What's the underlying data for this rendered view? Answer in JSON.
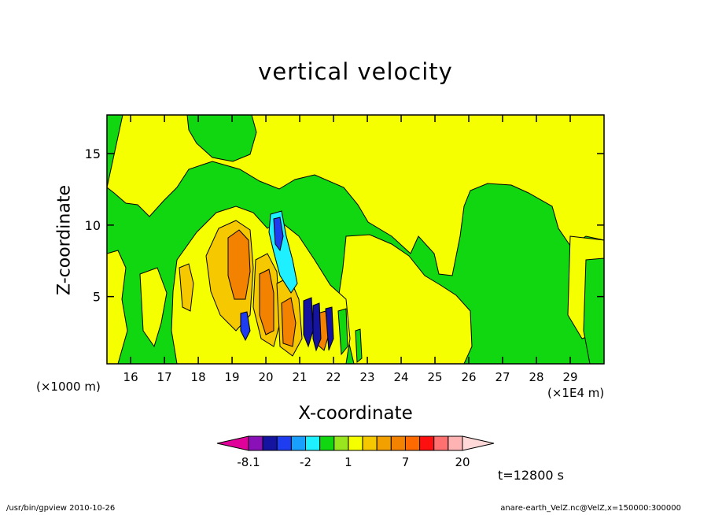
{
  "chart_data": {
    "type": "heatmap",
    "title": "vertical velocity",
    "xlabel": "X-coordinate",
    "ylabel": "Z-coordinate",
    "x_unit_left": "(×1000 m)",
    "x_unit_right": "(×1E4 m)",
    "x_ticks": [
      "16",
      "17",
      "18",
      "19",
      "20",
      "21",
      "22",
      "23",
      "24",
      "25",
      "26",
      "27",
      "28",
      "29"
    ],
    "y_ticks": [
      "5",
      "10",
      "15"
    ],
    "xlim": [
      15.3,
      30.0
    ],
    "ylim": [
      0.3,
      17.7
    ],
    "colorbar": {
      "colors": [
        "#e0009a",
        "#8a10b8",
        "#1414a0",
        "#1f3df0",
        "#19a0ff",
        "#1ff0ff",
        "#11d711",
        "#9ae61e",
        "#f5ff00",
        "#f5c800",
        "#f2a000",
        "#f28200",
        "#ff6a00",
        "#ff1010",
        "#ff7070",
        "#ffb4b4",
        "#ffd8d8"
      ],
      "labels": [
        {
          "text": "-8.1",
          "index": 1
        },
        {
          "text": "-2",
          "index": 5
        },
        {
          "text": "1",
          "index": 8
        },
        {
          "text": "7",
          "index": 12
        },
        {
          "text": "20",
          "index": 16
        }
      ]
    },
    "time_label": "t=12800 s"
  },
  "footer": {
    "left": "/usr/bin/gpview   2010-10-26",
    "right": "anare-earth_VelZ.nc@VelZ,x=150000:300000"
  }
}
